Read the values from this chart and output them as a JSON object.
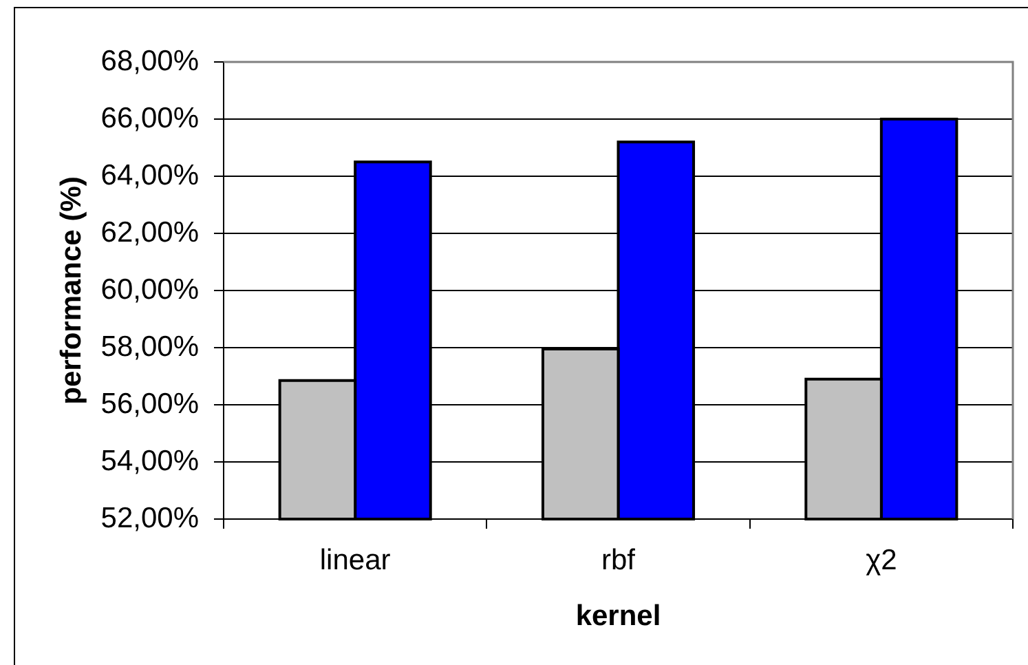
{
  "chart_data": {
    "type": "bar",
    "xlabel": "kernel",
    "ylabel": "performance (%)",
    "categories": [
      "linear",
      "rbf",
      "χ2"
    ],
    "series": [
      {
        "color": "#c0c0c0",
        "values": [
          56.85,
          57.95,
          56.9
        ]
      },
      {
        "color": "#0000ff",
        "values": [
          64.5,
          65.2,
          66.0
        ]
      }
    ],
    "ylim": [
      52,
      68
    ],
    "yticks": [
      {
        "value": 52,
        "label": "52,00%"
      },
      {
        "value": 54,
        "label": "54,00%"
      },
      {
        "value": 56,
        "label": "56,00%"
      },
      {
        "value": 58,
        "label": "58,00%"
      },
      {
        "value": 60,
        "label": "60,00%"
      },
      {
        "value": 62,
        "label": "62,00%"
      },
      {
        "value": 64,
        "label": "64,00%"
      },
      {
        "value": 66,
        "label": "66,00%"
      },
      {
        "value": 68,
        "label": "68,00%"
      }
    ],
    "grid": "y"
  }
}
